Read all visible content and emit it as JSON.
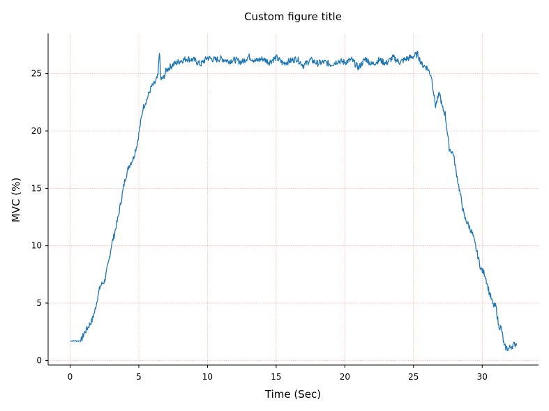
{
  "chart_data": {
    "type": "line",
    "title": "Custom figure title",
    "xlabel": "Time (Sec)",
    "ylabel": "MVC (%)",
    "xlim": [
      -1.6,
      34.1
    ],
    "ylim": [
      -0.4,
      28.5
    ],
    "xticks": [
      0,
      5,
      10,
      15,
      20,
      25,
      30
    ],
    "yticks": [
      0,
      5,
      10,
      15,
      20,
      25
    ],
    "grid": true,
    "grid_color": "#ff9999",
    "line_color": "#1f77b4",
    "series": [
      {
        "x": [
          0,
          0.5,
          0.8,
          1.0,
          1.3,
          1.6,
          1.8,
          2.0,
          2.2,
          2.5,
          2.8,
          3.0,
          3.2,
          3.5,
          3.8,
          4.0,
          4.3,
          4.6,
          4.9,
          5.1,
          5.3,
          5.6,
          5.9,
          6.2,
          6.4,
          6.5,
          6.6,
          6.8,
          7.0,
          7.5,
          8.0,
          8.5,
          9.0,
          9.5,
          10.0,
          10.5,
          11.0,
          11.5,
          12.0,
          12.5,
          13.0,
          13.5,
          14.0,
          14.5,
          15.0,
          15.5,
          16.0,
          16.5,
          17.0,
          17.5,
          18.0,
          18.5,
          19.0,
          19.5,
          20.0,
          20.5,
          21.0,
          21.5,
          22.0,
          22.5,
          23.0,
          23.5,
          24.0,
          24.5,
          25.0,
          25.3,
          25.6,
          26.0,
          26.3,
          26.6,
          26.9,
          27.1,
          27.3,
          27.6,
          27.9,
          28.1,
          28.4,
          28.7,
          29.0,
          29.3,
          29.6,
          29.9,
          30.2,
          30.5,
          30.8,
          31.0,
          31.2,
          31.4,
          31.6,
          31.9,
          32.2,
          32.5
        ],
        "y": [
          1.7,
          1.7,
          1.7,
          2.3,
          2.9,
          3.5,
          4.3,
          5.5,
          6.5,
          6.9,
          8.5,
          10.0,
          10.9,
          12.5,
          14.5,
          15.8,
          17.0,
          17.6,
          19.0,
          20.5,
          22.0,
          22.8,
          23.8,
          24.2,
          24.8,
          27.0,
          24.5,
          24.6,
          25.3,
          25.8,
          26.1,
          26.3,
          26.2,
          25.8,
          26.4,
          26.2,
          26.3,
          26.1,
          26.2,
          26.0,
          26.5,
          26.1,
          26.3,
          26.0,
          26.4,
          25.9,
          26.1,
          26.3,
          25.7,
          26.2,
          25.9,
          26.0,
          25.8,
          26.1,
          26.0,
          26.2,
          25.5,
          26.3,
          25.8,
          26.2,
          25.9,
          26.4,
          26.0,
          26.3,
          26.5,
          26.7,
          25.8,
          25.5,
          24.8,
          22.2,
          23.3,
          22.0,
          21.5,
          18.5,
          18.0,
          16.5,
          14.5,
          12.5,
          11.8,
          11.0,
          9.5,
          8.0,
          7.5,
          6.0,
          4.8,
          4.7,
          3.0,
          2.8,
          1.2,
          1.0,
          1.3,
          1.5
        ]
      }
    ]
  }
}
